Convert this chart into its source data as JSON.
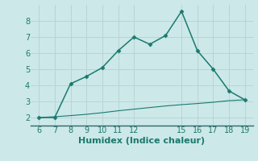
{
  "xlabel": "Humidex (Indice chaleur)",
  "ylabel": "",
  "bg_color": "#cce8e8",
  "grid_color": "#b8d4d4",
  "line_color": "#1a7a6e",
  "line1_x": [
    6,
    7,
    8,
    9,
    10,
    11,
    12,
    13,
    14,
    15,
    16,
    17,
    18,
    19
  ],
  "line1_y": [
    2.0,
    2.0,
    4.1,
    4.55,
    5.1,
    6.15,
    7.0,
    6.55,
    7.1,
    8.6,
    6.15,
    5.0,
    3.65,
    3.1
  ],
  "line2_x": [
    6,
    7,
    8,
    9,
    10,
    11,
    12,
    13,
    14,
    15,
    16,
    17,
    18,
    19
  ],
  "line2_y": [
    2.0,
    2.05,
    2.12,
    2.2,
    2.3,
    2.42,
    2.52,
    2.62,
    2.72,
    2.8,
    2.87,
    2.95,
    3.05,
    3.1
  ],
  "xlim": [
    5.5,
    19.5
  ],
  "ylim": [
    1.5,
    9.0
  ],
  "xticks": [
    6,
    7,
    8,
    9,
    10,
    11,
    12,
    15,
    16,
    17,
    18,
    19
  ],
  "yticks": [
    2,
    3,
    4,
    5,
    6,
    7,
    8
  ],
  "tick_fontsize": 7,
  "xlabel_fontsize": 8,
  "marker": "D",
  "markersize": 2.5,
  "spine_color": "#557777",
  "axis_bottom_color": "#336666"
}
